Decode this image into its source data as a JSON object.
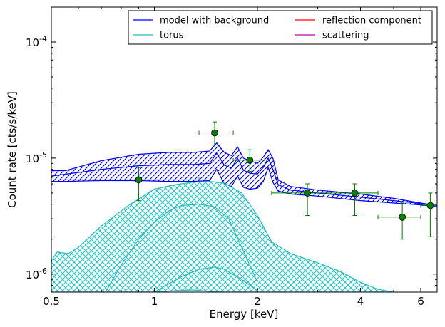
{
  "chart_data": {
    "type": "line",
    "title": "",
    "xlabel": "Energy [keV]",
    "ylabel": "Count rate [cts/s/keV]",
    "xscale": "log",
    "yscale": "log",
    "xlim": [
      0.5,
      6.7
    ],
    "ylim": [
      7e-07,
      0.0002
    ],
    "x_ticks": [
      {
        "value": 0.5,
        "label": "0.5"
      },
      {
        "value": 1,
        "label": "1"
      },
      {
        "value": 2,
        "label": "2"
      },
      {
        "value": 4,
        "label": "4"
      },
      {
        "value": 6,
        "label": "6"
      }
    ],
    "y_ticks": [
      {
        "value": 1e-06,
        "base": "10",
        "exp": "-6"
      },
      {
        "value": 1e-05,
        "base": "10",
        "exp": "-5"
      },
      {
        "value": 0.0001,
        "base": "10",
        "exp": "-4"
      }
    ],
    "legend": {
      "placement": "top-right",
      "columns": 2,
      "entries": [
        {
          "name": "model with background",
          "color": "#0000ff"
        },
        {
          "name": "torus",
          "color": "#1fbfbf"
        },
        {
          "name": "reflection component",
          "color": "#ff0000"
        },
        {
          "name": "scattering",
          "color": "#bf00bf"
        }
      ]
    },
    "bands": [
      {
        "series": "model with background",
        "color": "#0000ff",
        "x": [
          0.5,
          0.55,
          0.7,
          0.9,
          1.1,
          1.3,
          1.45,
          1.52,
          1.6,
          1.68,
          1.75,
          1.82,
          1.9,
          2.0,
          2.08,
          2.15,
          2.22,
          2.3,
          2.5,
          3.0,
          4.0,
          5.0,
          6.0,
          6.7
        ],
        "upper": [
          7.8e-06,
          7.8e-06,
          9.5e-06,
          1.08e-05,
          1.12e-05,
          1.12e-05,
          1.15e-05,
          1.35e-05,
          1.12e-05,
          1.05e-05,
          1.25e-05,
          1e-05,
          9.5e-06,
          9e-06,
          1.02e-05,
          1.18e-05,
          1e-05,
          6.5e-06,
          5.7e-06,
          5.3e-06,
          4.9e-06,
          4.5e-06,
          4.1e-06,
          3.9e-06
        ],
        "lower": [
          6.3e-06,
          6.3e-06,
          6.4e-06,
          6.4e-06,
          6.3e-06,
          6.3e-06,
          6.4e-06,
          8e-06,
          6e-06,
          5.7e-06,
          7e-06,
          5.6e-06,
          5.4e-06,
          5.5e-06,
          6.3e-06,
          8.3e-06,
          6.2e-06,
          5.2e-06,
          4.9e-06,
          4.7e-06,
          4.3e-06,
          4.1e-06,
          3.95e-06,
          3.85e-06
        ]
      },
      {
        "series": "torus",
        "color": "#1fbfbf",
        "x": [
          0.5,
          0.52,
          0.56,
          0.6,
          0.7,
          0.85,
          1.0,
          1.15,
          1.3,
          1.45,
          1.6,
          1.8,
          2.0,
          2.2,
          2.5,
          3.0,
          3.5,
          4.0,
          4.5,
          5.0
        ],
        "upper": [
          1.3e-06,
          1.55e-06,
          1.5e-06,
          1.7e-06,
          2.6e-06,
          4e-06,
          5.4e-06,
          5.9e-06,
          6.2e-06,
          6.3e-06,
          6.1e-06,
          5e-06,
          3.2e-06,
          1.9e-06,
          1.5e-06,
          1.25e-06,
          1.05e-06,
          8.5e-07,
          7.4e-07,
          7e-07
        ],
        "lower": [
          7e-07,
          7e-07,
          7e-07,
          7e-07,
          7e-07,
          7e-07,
          7e-07,
          7.2e-07,
          7.3e-07,
          7.1e-07,
          7e-07,
          7e-07,
          7e-07,
          7e-07,
          7e-07,
          7e-07,
          7e-07,
          7e-07,
          7e-07,
          7e-07
        ]
      }
    ],
    "lines": [
      {
        "series": "model with background",
        "color": "#0000ff",
        "x": [
          0.5,
          0.7,
          0.9,
          1.1,
          1.3,
          1.45,
          1.52,
          1.6,
          1.68,
          1.75,
          1.82,
          1.9,
          2.0,
          2.08,
          2.15,
          2.22,
          2.3,
          2.5,
          3.0,
          4.0,
          5.0,
          6.0,
          6.7
        ],
        "y": [
          7e-06,
          8e-06,
          8.6e-06,
          8.8e-06,
          8.8e-06,
          9e-06,
          1.1e-05,
          8.7e-06,
          8.2e-06,
          1e-05,
          7.9e-06,
          7.4e-06,
          7.3e-06,
          8.3e-06,
          1e-05,
          8e-06,
          5.9e-06,
          5.3e-06,
          5e-06,
          4.6e-06,
          4.3e-06,
          4.05e-06,
          3.9e-06
        ]
      },
      {
        "series": "torus",
        "color": "#1fbfbf",
        "x": [
          0.72,
          0.8,
          0.9,
          1.0,
          1.1,
          1.2,
          1.35,
          1.5,
          1.65,
          1.8,
          2.0
        ],
        "y": [
          7e-07,
          1.2e-06,
          2e-06,
          2.8e-06,
          3.5e-06,
          3.9e-06,
          4e-06,
          3.8e-06,
          3e-06,
          1.7e-06,
          8.5e-07
        ]
      },
      {
        "series": "torus",
        "color": "#1fbfbf",
        "x": [
          1.0,
          1.2,
          1.35,
          1.5,
          1.6,
          1.8,
          2.0
        ],
        "y": [
          7e-07,
          9.5e-07,
          1.1e-06,
          1.15e-06,
          1.1e-06,
          9e-07,
          7.2e-07
        ]
      }
    ],
    "data_points": {
      "color": "#008000",
      "points": [
        {
          "x": 0.9,
          "y": 6.5e-06,
          "xerr": [
            0.5,
            1.35
          ],
          "yerr": [
            4.3e-06,
            8.3e-06
          ]
        },
        {
          "x": 1.5,
          "y": 1.65e-05,
          "xerr": [
            1.35,
            1.7
          ],
          "yerr": [
            1.3e-05,
            2.05e-05
          ]
        },
        {
          "x": 1.9,
          "y": 9.6e-06,
          "xerr": [
            1.7,
            2.1
          ],
          "yerr": [
            7.7e-06,
            1.18e-05
          ]
        },
        {
          "x": 2.8,
          "y": 5e-06,
          "xerr": [
            2.2,
            3.3
          ],
          "yerr": [
            3.2e-06,
            6e-06
          ]
        },
        {
          "x": 3.85,
          "y": 5e-06,
          "xerr": [
            3.3,
            4.5
          ],
          "yerr": [
            3.2e-06,
            6e-06
          ]
        },
        {
          "x": 5.3,
          "y": 3.1e-06,
          "xerr": [
            4.5,
            6.0
          ],
          "yerr": [
            2e-06,
            4.1e-06
          ]
        },
        {
          "x": 6.4,
          "y": 3.9e-06,
          "xerr": [
            6.0,
            6.7
          ],
          "yerr": [
            2.1e-06,
            5e-06
          ]
        }
      ]
    },
    "grid": false
  }
}
